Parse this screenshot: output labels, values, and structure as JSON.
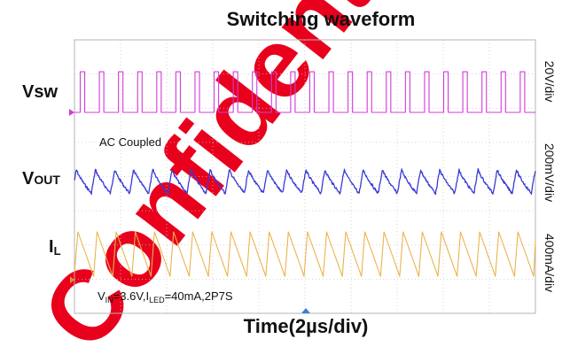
{
  "chart_data": {
    "type": "line",
    "title": "Switching waveform",
    "xlabel": "Time(2µs/div)",
    "x_divisions": 10,
    "y_divisions": 8,
    "grid": true,
    "time_per_div_us": 2,
    "annotation_coupling": "AC Coupled",
    "conditions": {
      "vin": {
        "base": "V",
        "sub": "IN",
        "rest": "=3.6V,"
      },
      "iled": {
        "base": "I",
        "sub": "LED",
        "rest": "=40mA,2P7S"
      }
    },
    "series": [
      {
        "name": "Vsw",
        "name_base": "Vsw",
        "name_sub": "",
        "scale": "20V/div",
        "color": "#d03cd8",
        "shape": "pulse",
        "switching_period_us": 0.83,
        "duty_cycle": 0.26,
        "baseline_div": 0,
        "amplitude_div": 2.5
      },
      {
        "name": "VOUT",
        "name_base": "V",
        "name_sub": "OUT",
        "scale": "200mV/div",
        "color": "#3a3ad8",
        "shape": "ripple",
        "switching_period_us": 0.83,
        "ripple_pp_div": 0.7
      },
      {
        "name": "IL",
        "name_base": "I",
        "name_sub": "L",
        "scale": "400mA/div",
        "color": "#e9b44c",
        "shape": "sawtooth",
        "switching_period_us": 0.83,
        "ripple_pp_div": 1.3
      }
    ]
  },
  "watermark": "Confidential",
  "colors": {
    "grid": "#c8c8c8",
    "trigger_marker": "#3a7fd8",
    "channel_marker_il": "#d49a2a",
    "watermark": "#e8001c"
  }
}
